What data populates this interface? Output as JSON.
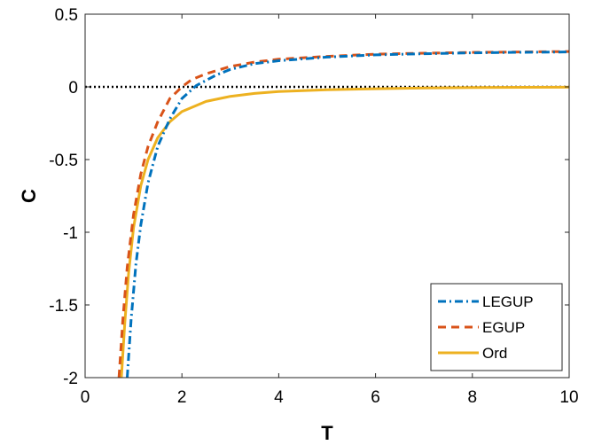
{
  "chart_data": {
    "type": "line",
    "xlabel": "T",
    "ylabel": "C",
    "xlim": [
      0,
      10
    ],
    "ylim": [
      -2,
      0.5
    ],
    "grid": false,
    "legend_position": "bottom-right",
    "x_ticks": [
      0,
      2,
      4,
      6,
      8,
      10
    ],
    "x_tick_labels": [
      "0",
      "2",
      "4",
      "6",
      "8",
      "10"
    ],
    "y_ticks": [
      0.5,
      0,
      -0.5,
      -1,
      -1.5,
      -2
    ],
    "y_tick_labels": [
      "0.5",
      "0",
      "-0.5",
      "-1",
      "-1.5",
      "-2"
    ],
    "reference_line": {
      "y": 0,
      "style": "dotted",
      "color": "#000000"
    },
    "series": [
      {
        "name": "LEGUP",
        "style": "dashdot",
        "color": "#0072BD",
        "x": [
          0.87,
          0.95,
          1.05,
          1.15,
          1.3,
          1.5,
          1.75,
          2.0,
          2.3,
          2.7,
          3.0,
          3.5,
          4.0,
          5.0,
          6.0,
          7.0,
          8.0,
          9.0,
          10.0
        ],
        "y": [
          -2.0,
          -1.6,
          -1.22,
          -0.95,
          -0.66,
          -0.41,
          -0.22,
          -0.08,
          0.01,
          0.08,
          0.12,
          0.16,
          0.18,
          0.205,
          0.22,
          0.228,
          0.234,
          0.238,
          0.24
        ]
      },
      {
        "name": "EGUP",
        "style": "dashed",
        "color": "#D95319",
        "x": [
          0.7,
          0.78,
          0.87,
          1.0,
          1.15,
          1.3,
          1.5,
          1.75,
          2.0,
          2.2,
          2.5,
          3.0,
          3.5,
          4.0,
          5.0,
          6.0,
          7.0,
          8.0,
          9.0,
          10.0
        ],
        "y": [
          -2.0,
          -1.6,
          -1.24,
          -0.88,
          -0.6,
          -0.41,
          -0.24,
          -0.08,
          0.0,
          0.05,
          0.09,
          0.14,
          0.17,
          0.19,
          0.21,
          0.225,
          0.232,
          0.237,
          0.24,
          0.243
        ]
      },
      {
        "name": "Ord",
        "style": "solid",
        "color": "#EDB120",
        "x": [
          0.75,
          0.82,
          0.9,
          1.0,
          1.15,
          1.3,
          1.5,
          1.75,
          2.0,
          2.5,
          3.0,
          3.5,
          4.0,
          5.0,
          6.0,
          7.0,
          8.0,
          9.0,
          10.0
        ],
        "y": [
          -2.0,
          -1.62,
          -1.28,
          -0.97,
          -0.68,
          -0.5,
          -0.35,
          -0.24,
          -0.17,
          -0.1,
          -0.065,
          -0.045,
          -0.032,
          -0.02,
          -0.013,
          -0.008,
          -0.005,
          -0.003,
          -0.002
        ]
      }
    ]
  }
}
